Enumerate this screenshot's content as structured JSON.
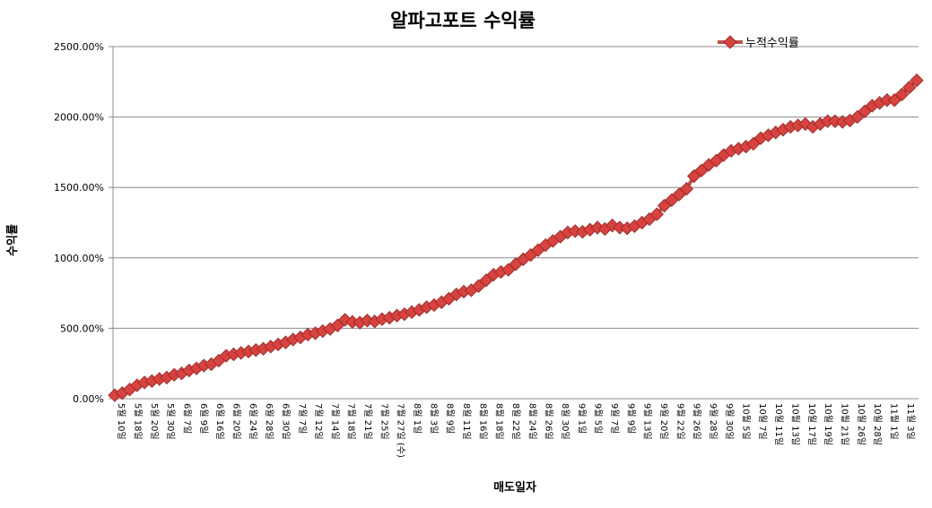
{
  "colors": {
    "series": "#c0504d",
    "series_marker": "#d8423f",
    "series_outline": "#9e2f2c",
    "grid": "#8c8c8c",
    "axis": "#8c8c8c"
  },
  "chart_data": {
    "type": "line",
    "title": "알파고포트 수익률",
    "xlabel": "매도일자",
    "ylabel": "수익률",
    "ylim": [
      0,
      2500
    ],
    "y_ticks": [
      0,
      500,
      1000,
      1500,
      2000,
      2500
    ],
    "y_tick_labels": [
      "0.00%",
      "500.00%",
      "1000.00%",
      "1500.00%",
      "2000.00%",
      "2500.00%"
    ],
    "grid": true,
    "legend_position": "top-right",
    "x_tick_labels": [
      "5월 10일",
      "5월 18일",
      "5월 20일",
      "5월 30일",
      "6월 7일",
      "6월 9일",
      "6월 16일",
      "6월 20일",
      "6월 24일",
      "6월 28일",
      "6월 30일",
      "7월 7일",
      "7월 12일",
      "7월 14일",
      "7월 18일",
      "7월 21일",
      "7월 25일",
      "7월 27일 (수)",
      "8월 1일",
      "8월 3일",
      "8월 9일",
      "8월 11일",
      "8월 16일",
      "8월 18일",
      "8월 22일",
      "8월 24일",
      "8월 26일",
      "8월 30일",
      "9월 1일",
      "9월 5일",
      "9월 7일",
      "9월 9일",
      "9월 13일",
      "9월 20일",
      "9월 22일",
      "9월 26일",
      "9월 28일",
      "9월 30일",
      "10월 5일",
      "10월 7일",
      "10월 11일",
      "10월 13일",
      "10월 17일",
      "10월 19일",
      "10월 21일",
      "10월 26일",
      "10월 28일",
      "11월 1일",
      "11월 3일"
    ],
    "series": [
      {
        "name": "누적수익률",
        "values": [
          25,
          40,
          65,
          95,
          115,
          125,
          140,
          150,
          170,
          180,
          200,
          215,
          235,
          245,
          270,
          305,
          315,
          325,
          335,
          345,
          355,
          370,
          385,
          400,
          420,
          435,
          455,
          465,
          480,
          495,
          520,
          560,
          545,
          540,
          555,
          548,
          565,
          575,
          590,
          600,
          615,
          630,
          650,
          665,
          685,
          710,
          740,
          760,
          770,
          800,
          840,
          880,
          900,
          915,
          955,
          990,
          1020,
          1055,
          1090,
          1120,
          1150,
          1180,
          1190,
          1185,
          1200,
          1215,
          1205,
          1230,
          1215,
          1210,
          1225,
          1250,
          1275,
          1310,
          1370,
          1410,
          1450,
          1490,
          1580,
          1620,
          1660,
          1690,
          1730,
          1760,
          1775,
          1790,
          1810,
          1850,
          1870,
          1890,
          1910,
          1930,
          1940,
          1950,
          1930,
          1950,
          1970,
          1970,
          1965,
          1975,
          2000,
          2040,
          2080,
          2100,
          2120,
          2120,
          2160,
          2210,
          2260
        ]
      }
    ]
  }
}
